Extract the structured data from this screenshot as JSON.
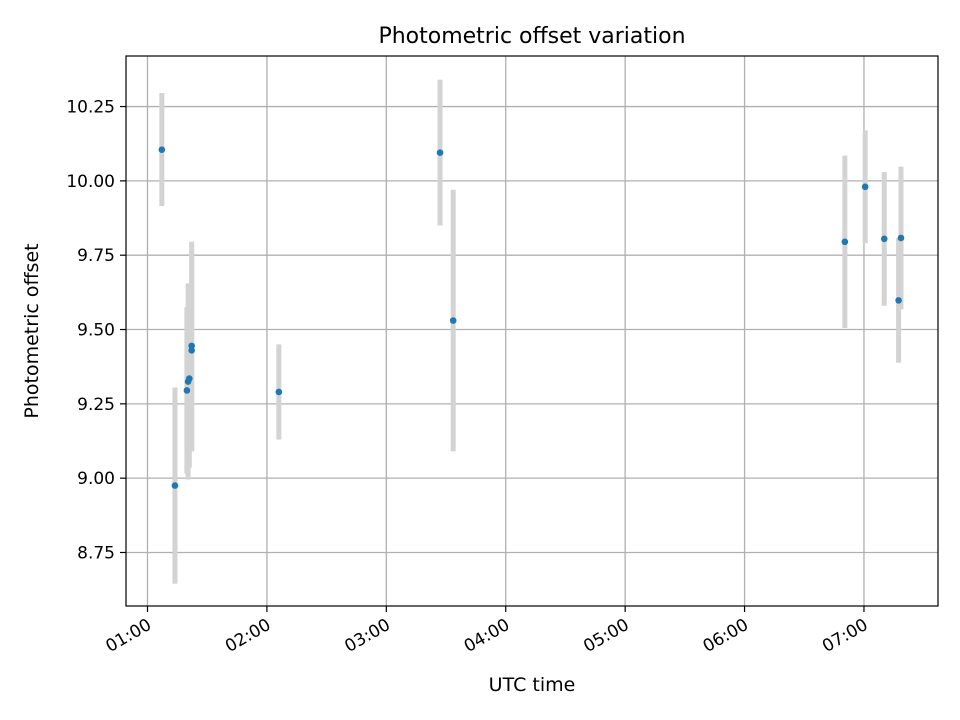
{
  "chart_data": {
    "type": "scatter",
    "title": "Photometric offset variation",
    "xlabel": "UTC time",
    "ylabel": "Photometric offset",
    "x_ticks": [
      "01:00",
      "02:00",
      "03:00",
      "04:00",
      "05:00",
      "06:00",
      "07:00"
    ],
    "y_ticks": [
      "8.75",
      "9.00",
      "9.25",
      "9.50",
      "9.75",
      "10.00",
      "10.25"
    ],
    "x_unit": "hours UTC",
    "xlim": [
      0.82,
      7.62
    ],
    "ylim": [
      8.57,
      10.42
    ],
    "grid": true,
    "colors": {
      "marker": "#1f77b4",
      "errorbar": "#d3d3d3",
      "grid": "#b0b0b0"
    },
    "series": [
      {
        "points": [
          {
            "x": 1.12,
            "y": 10.105,
            "err": 0.19
          },
          {
            "x": 1.23,
            "y": 8.975,
            "err": 0.33
          },
          {
            "x": 1.33,
            "y": 9.295,
            "err": 0.28
          },
          {
            "x": 1.34,
            "y": 9.325,
            "err": 0.33
          },
          {
            "x": 1.35,
            "y": 9.335,
            "err": 0.3
          },
          {
            "x": 1.37,
            "y": 9.43,
            "err": 0.34
          },
          {
            "x": 1.37,
            "y": 9.445,
            "err": 0.35
          },
          {
            "x": 2.1,
            "y": 9.29,
            "err": 0.16
          },
          {
            "x": 3.45,
            "y": 10.095,
            "err": 0.245
          },
          {
            "x": 3.56,
            "y": 9.53,
            "err": 0.44
          },
          {
            "x": 6.84,
            "y": 9.795,
            "err": 0.29
          },
          {
            "x": 7.01,
            "y": 9.98,
            "err": 0.19
          },
          {
            "x": 7.17,
            "y": 9.805,
            "err": 0.225
          },
          {
            "x": 7.29,
            "y": 9.598,
            "err": 0.21
          },
          {
            "x": 7.31,
            "y": 9.808,
            "err": 0.24
          }
        ]
      }
    ]
  }
}
